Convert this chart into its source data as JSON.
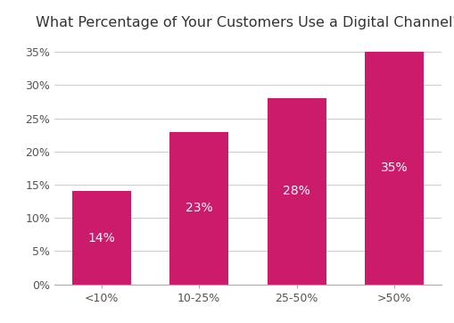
{
  "title": "What Percentage of Your Customers Use a Digital Channel?",
  "categories": [
    "<10%",
    "10-25%",
    "25-50%",
    ">50%"
  ],
  "values": [
    14,
    23,
    28,
    35
  ],
  "labels": [
    "14%",
    "23%",
    "28%",
    "35%"
  ],
  "bar_color": "#CC1B6B",
  "label_color": "#FFFFFF",
  "title_fontsize": 11.5,
  "label_fontsize": 10,
  "tick_fontsize": 9,
  "ylim": [
    0,
    37
  ],
  "yticks": [
    0,
    5,
    10,
    15,
    20,
    25,
    30,
    35
  ],
  "background_color": "#FFFFFF",
  "grid_color": "#CCCCCC"
}
